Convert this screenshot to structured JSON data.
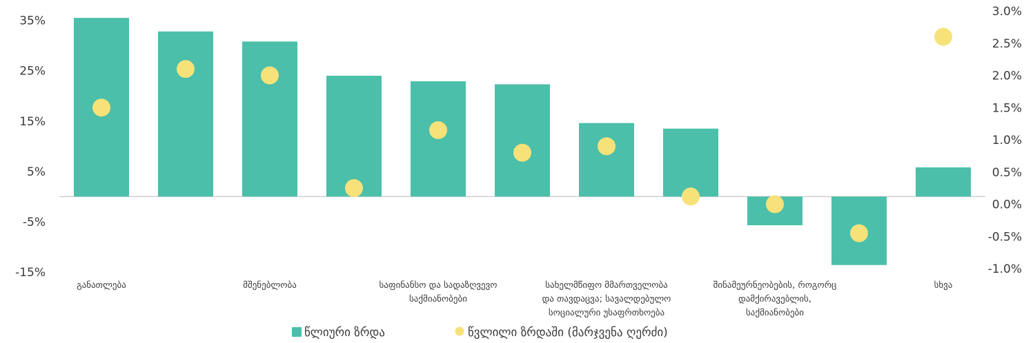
{
  "chart_data": {
    "type": "bar",
    "categories": [
      [
        "განათლება"
      ],
      [],
      [
        "მშენებლობა"
      ],
      [],
      [
        "საფინანსო და სადაზღვევო",
        "საქმიანობები"
      ],
      [],
      [
        "სახელმწიფო მმართველობა",
        "და თავდაცვა; სავალდებულო",
        "სოციალური უსაფრთხოება"
      ],
      [],
      [
        "შინამეურნეობების, როგორც",
        "დამქირავებლის,",
        "საქმიანობები"
      ],
      [],
      [
        "სხვა"
      ]
    ],
    "series": [
      {
        "name": "წლიური ზრდა",
        "type": "bar",
        "axis": "left",
        "values": [
          35.5,
          32.8,
          30.8,
          24.0,
          22.9,
          22.3,
          14.6,
          13.5,
          -5.7,
          -13.6,
          5.8
        ]
      },
      {
        "name": "წვლილი ზრდაში (მარჯვენა ღერძი)",
        "type": "scatter",
        "axis": "right",
        "values": [
          1.5,
          2.1,
          2.0,
          0.25,
          1.15,
          0.8,
          0.9,
          0.12,
          0.0,
          -0.45,
          2.6
        ]
      }
    ],
    "y_left": {
      "ylim": [
        -15,
        37
      ],
      "ticks": [
        35,
        25,
        15,
        5,
        -5,
        -15
      ],
      "tick_labels": [
        "35%",
        "25%",
        "15%",
        "5%",
        "-5%",
        "-15%"
      ]
    },
    "y_right": {
      "ylim": [
        -1.0,
        3.0
      ],
      "ticks": [
        3.0,
        2.5,
        2.0,
        1.5,
        1.0,
        0.5,
        0.0,
        -0.5,
        -1.0
      ],
      "tick_labels": [
        "3.0%",
        "2.5%",
        "2.0%",
        "1.5%",
        "1.0%",
        "0.5%",
        "0.0%",
        "-0.5%",
        "-1.0%"
      ]
    },
    "grid": false,
    "legend_position": "bottom",
    "colors": {
      "bar": "#4bbfa9",
      "dot": "#f7e27a",
      "axis": "#d0d0d0",
      "text": "#3a3a3a"
    }
  }
}
